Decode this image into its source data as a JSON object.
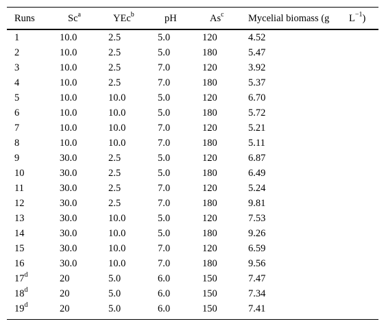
{
  "table": {
    "headers": {
      "runs": "Runs",
      "sc": "Sc",
      "sc_sup": "a",
      "yec": "YEc",
      "yec_sup": "b",
      "ph": "pH",
      "as": "As",
      "as_sup": "c",
      "biomass_a": "Mycelial biomass (g",
      "biomass_b": "L",
      "biomass_b_sup": "−1",
      "biomass_close": ")"
    },
    "rows": [
      {
        "run": "1",
        "run_sup": "",
        "sc": "10.0",
        "yec": "2.5",
        "ph": "5.0",
        "as": "120",
        "biomass": "4.52"
      },
      {
        "run": "2",
        "run_sup": "",
        "sc": "10.0",
        "yec": "2.5",
        "ph": "5.0",
        "as": "180",
        "biomass": "5.47"
      },
      {
        "run": "3",
        "run_sup": "",
        "sc": "10.0",
        "yec": "2.5",
        "ph": "7.0",
        "as": "120",
        "biomass": "3.92"
      },
      {
        "run": "4",
        "run_sup": "",
        "sc": "10.0",
        "yec": "2.5",
        "ph": "7.0",
        "as": "180",
        "biomass": "5.37"
      },
      {
        "run": "5",
        "run_sup": "",
        "sc": "10.0",
        "yec": "10.0",
        "ph": "5.0",
        "as": "120",
        "biomass": "6.70"
      },
      {
        "run": "6",
        "run_sup": "",
        "sc": "10.0",
        "yec": "10.0",
        "ph": "5.0",
        "as": "180",
        "biomass": "5.72"
      },
      {
        "run": "7",
        "run_sup": "",
        "sc": "10.0",
        "yec": "10.0",
        "ph": "7.0",
        "as": "120",
        "biomass": "5.21"
      },
      {
        "run": "8",
        "run_sup": "",
        "sc": "10.0",
        "yec": "10.0",
        "ph": "7.0",
        "as": "180",
        "biomass": "5.11"
      },
      {
        "run": "9",
        "run_sup": "",
        "sc": "30.0",
        "yec": "2.5",
        "ph": "5.0",
        "as": "120",
        "biomass": "6.87"
      },
      {
        "run": "10",
        "run_sup": "",
        "sc": "30.0",
        "yec": "2.5",
        "ph": "5.0",
        "as": "180",
        "biomass": "6.49"
      },
      {
        "run": "11",
        "run_sup": "",
        "sc": "30.0",
        "yec": "2.5",
        "ph": "7.0",
        "as": "120",
        "biomass": "5.24"
      },
      {
        "run": "12",
        "run_sup": "",
        "sc": "30.0",
        "yec": "2.5",
        "ph": "7.0",
        "as": "180",
        "biomass": "9.81"
      },
      {
        "run": "13",
        "run_sup": "",
        "sc": "30.0",
        "yec": "10.0",
        "ph": "5.0",
        "as": "120",
        "biomass": "7.53"
      },
      {
        "run": "14",
        "run_sup": "",
        "sc": "30.0",
        "yec": "10.0",
        "ph": "5.0",
        "as": "180",
        "biomass": "9.26"
      },
      {
        "run": "15",
        "run_sup": "",
        "sc": "30.0",
        "yec": "10.0",
        "ph": "7.0",
        "as": "120",
        "biomass": "6.59"
      },
      {
        "run": "16",
        "run_sup": "",
        "sc": "30.0",
        "yec": "10.0",
        "ph": "7.0",
        "as": "180",
        "biomass": "9.56"
      },
      {
        "run": "17",
        "run_sup": "d",
        "sc": "20",
        "yec": "5.0",
        "ph": "6.0",
        "as": "150",
        "biomass": "7.47"
      },
      {
        "run": "18",
        "run_sup": "d",
        "sc": "20",
        "yec": "5.0",
        "ph": "6.0",
        "as": "150",
        "biomass": "7.34"
      },
      {
        "run": "19",
        "run_sup": "d",
        "sc": "20",
        "yec": "5.0",
        "ph": "6.0",
        "as": "150",
        "biomass": "7.41"
      }
    ]
  }
}
